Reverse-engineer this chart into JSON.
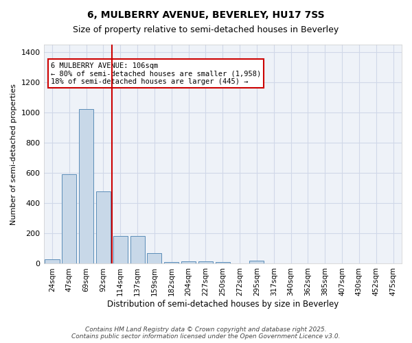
{
  "title1": "6, MULBERRY AVENUE, BEVERLEY, HU17 7SS",
  "title2": "Size of property relative to semi-detached houses in Beverley",
  "xlabel": "Distribution of semi-detached houses by size in Beverley",
  "ylabel": "Number of semi-detached properties",
  "categories": [
    "24sqm",
    "47sqm",
    "69sqm",
    "92sqm",
    "114sqm",
    "137sqm",
    "159sqm",
    "182sqm",
    "204sqm",
    "227sqm",
    "250sqm",
    "272sqm",
    "295sqm",
    "317sqm",
    "340sqm",
    "362sqm",
    "385sqm",
    "407sqm",
    "430sqm",
    "452sqm",
    "475sqm"
  ],
  "values": [
    28,
    590,
    1025,
    480,
    185,
    185,
    70,
    13,
    15,
    15,
    10,
    0,
    22,
    0,
    0,
    0,
    0,
    0,
    0,
    0,
    0
  ],
  "bar_color": "#c8d8e8",
  "bar_edge_color": "#5b8db8",
  "grid_color": "#d0d8e8",
  "background_color": "#eef2f8",
  "vline_x": 4,
  "vline_color": "#cc0000",
  "annotation_text": "6 MULBERRY AVENUE: 106sqm\n← 80% of semi-detached houses are smaller (1,958)\n18% of semi-detached houses are larger (445) →",
  "annotation_box_color": "#ffffff",
  "annotation_box_edge": "#cc0000",
  "ylim": [
    0,
    1450
  ],
  "yticks": [
    0,
    200,
    400,
    600,
    800,
    1000,
    1200,
    1400
  ],
  "footer": "Contains HM Land Registry data © Crown copyright and database right 2025.\nContains public sector information licensed under the Open Government Licence v3.0."
}
